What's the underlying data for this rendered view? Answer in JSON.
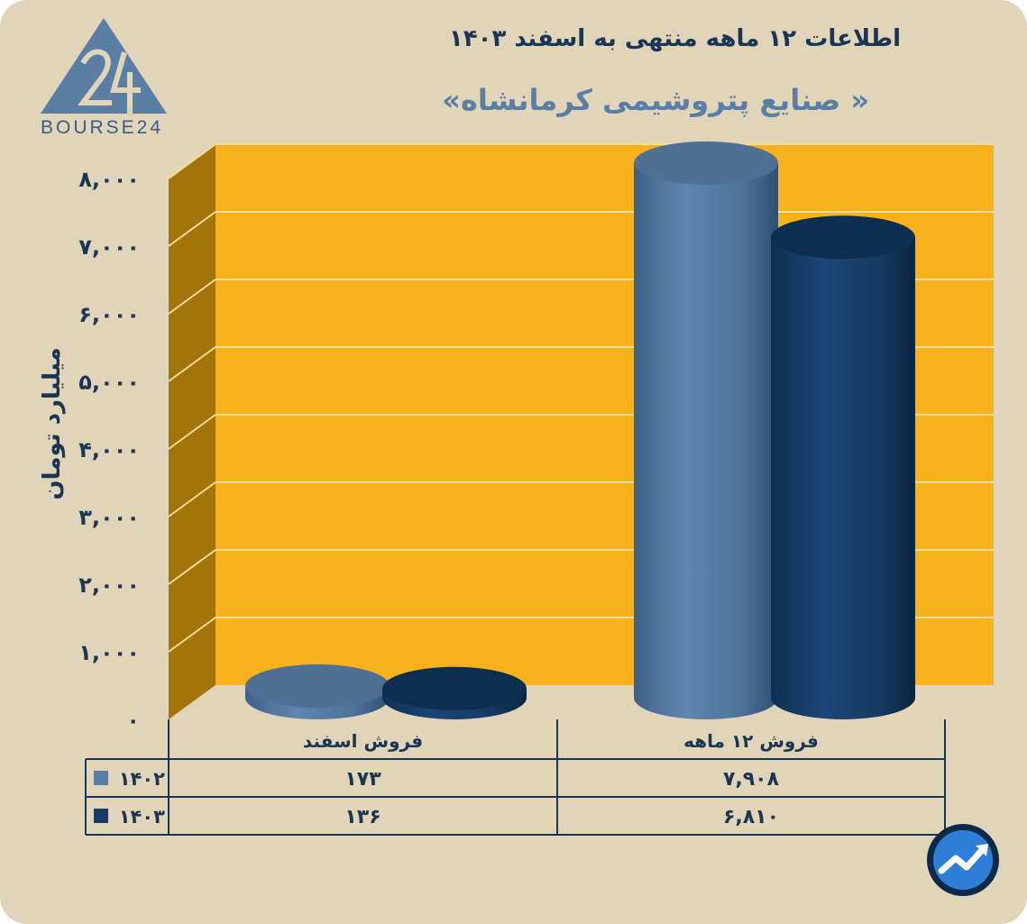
{
  "header": {
    "title": "اطلاعات ۱۲ ماهه منتهی به اسفند ۱۴۰۳",
    "subtitle": "« صنایع پتروشیمی کرمانشاه»"
  },
  "brand": {
    "logo_text": "BOURSE24",
    "logo_icon": "bourse24-logo-icon",
    "badge_icon": "trend-arrow-icon"
  },
  "colors": {
    "background": "#e0d5b8",
    "plot": "#f8b11b",
    "side_wall": "#a37409",
    "series_1402": "#5a7ea4",
    "series_1403": "#163c66",
    "text": "#1b3553"
  },
  "chart_data": {
    "type": "bar",
    "ylabel": "میلیارد تومان",
    "ylim": [
      0,
      8000
    ],
    "yticks": [
      0,
      1000,
      2000,
      3000,
      4000,
      5000,
      6000,
      7000,
      8000
    ],
    "ytick_labels": [
      "۰",
      "۱,۰۰۰",
      "۲,۰۰۰",
      "۳,۰۰۰",
      "۴,۰۰۰",
      "۵,۰۰۰",
      "۶,۰۰۰",
      "۷,۰۰۰",
      "۸,۰۰۰"
    ],
    "categories": [
      "فروش اسفند",
      "فروش ۱۲ ماهه"
    ],
    "series": [
      {
        "name": "۱۴۰۲",
        "values": [
          173,
          7908
        ],
        "labels": [
          "۱۷۳",
          "۷,۹۰۸"
        ],
        "color": "#5a7ea4"
      },
      {
        "name": "۱۴۰۳",
        "values": [
          136,
          6810
        ],
        "labels": [
          "۱۳۶",
          "۶,۸۱۰"
        ],
        "color": "#163c66"
      }
    ],
    "grid": true,
    "legend": "data-table-left"
  }
}
